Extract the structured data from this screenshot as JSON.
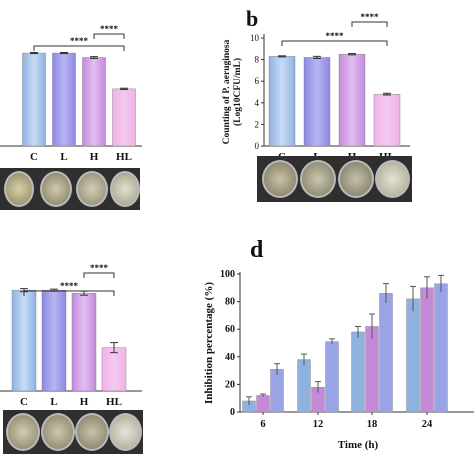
{
  "colors": {
    "C": "#8fb1e0",
    "L": "#8c88e4",
    "H": "#c48ad8",
    "HL": "#f1b2e6",
    "C_light": "#c7dcf7",
    "L_light": "#b8b5f2",
    "H_light": "#e2bff4",
    "HL_light": "#f4c9f0",
    "d_series1": "#8fb1e0",
    "d_series2": "#c48ad8",
    "d_series3": "#9aa3e6",
    "plate_strip": "#2f2f2f"
  },
  "significance_label": "****",
  "chart_data": [
    {
      "panel": "a",
      "type": "bar",
      "categories": [
        "C",
        "L",
        "H",
        "HL"
      ],
      "values": [
        8.3,
        8.3,
        7.9,
        5.1
      ],
      "errors": [
        0.05,
        0.05,
        0.08,
        0.06
      ],
      "significance": [
        {
          "from": "C",
          "to": "HL",
          "label": "****"
        },
        {
          "from": "H",
          "to": "HL",
          "label": "****"
        }
      ]
    },
    {
      "panel": "b",
      "label": "b",
      "type": "bar",
      "categories": [
        "C",
        "L",
        "H",
        "HL"
      ],
      "values": [
        8.3,
        8.2,
        8.5,
        4.8
      ],
      "errors": [
        0.05,
        0.1,
        0.06,
        0.08
      ],
      "ylabel_line1": "Counting of P. aeruginosa",
      "ylabel_line2": "(Log10CFU/mL)",
      "yticks": [
        "0",
        "2",
        "4",
        "6",
        "8",
        "10"
      ],
      "ylim": [
        0,
        10
      ],
      "significance": [
        {
          "from": "C",
          "to": "HL",
          "label": "****"
        },
        {
          "from": "H",
          "to": "HL",
          "label": "****"
        }
      ]
    },
    {
      "panel": "c",
      "type": "bar",
      "categories": [
        "C",
        "L",
        "H",
        "HL"
      ],
      "values": [
        100,
        100,
        97,
        43
      ],
      "errors": [
        1.5,
        1,
        2,
        5
      ],
      "significance": [
        {
          "from": "C",
          "to": "HL",
          "label": "****"
        },
        {
          "from": "H",
          "to": "HL",
          "label": "****"
        }
      ]
    },
    {
      "panel": "d",
      "label": "d",
      "type": "bar",
      "xlabel": "Time (h)",
      "ylabel": "Inhibition percentage (%)",
      "categories": [
        "6",
        "12",
        "18",
        "24"
      ],
      "yticks": [
        "0",
        "20",
        "40",
        "60",
        "80",
        "100"
      ],
      "ylim": [
        0,
        100
      ],
      "series": [
        {
          "values": [
            8,
            38,
            58,
            82
          ],
          "errors": [
            3,
            4,
            4,
            9
          ]
        },
        {
          "values": [
            12,
            18,
            62,
            90
          ],
          "errors": [
            1,
            4,
            9,
            8
          ]
        },
        {
          "values": [
            31,
            51,
            86,
            93
          ],
          "errors": [
            4,
            2,
            7,
            6
          ]
        }
      ]
    }
  ]
}
